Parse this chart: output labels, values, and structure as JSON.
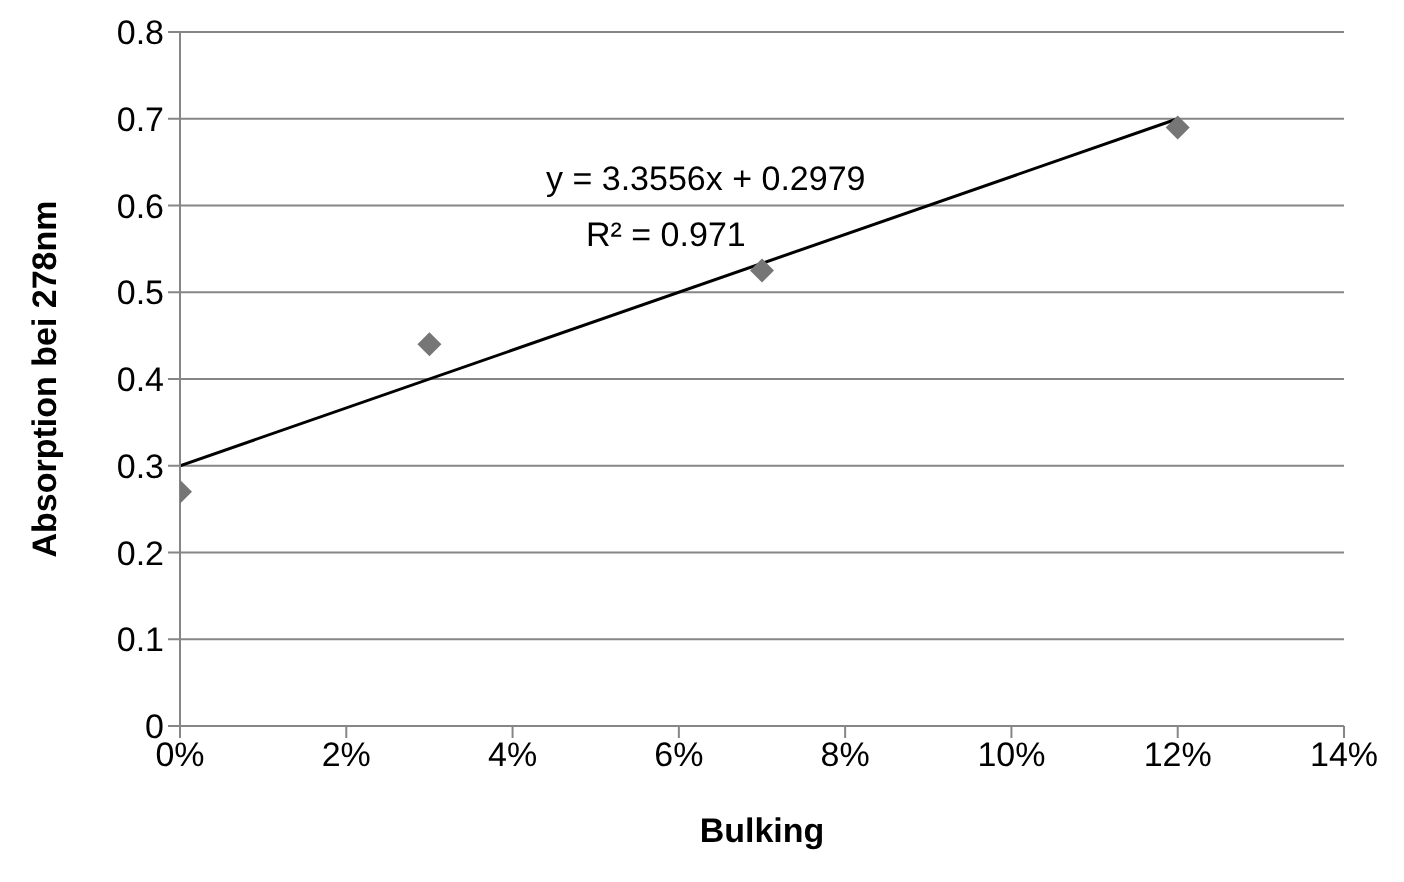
{
  "chart_data": {
    "type": "scatter",
    "xlabel": "Bulking",
    "ylabel": "Absorption bei 278nm",
    "xlim": [
      0,
      0.14
    ],
    "xticks": [
      {
        "value": 0,
        "label": "0%"
      },
      {
        "value": 0.02,
        "label": "2%"
      },
      {
        "value": 0.04,
        "label": "4%"
      },
      {
        "value": 0.06,
        "label": "6%"
      },
      {
        "value": 0.08,
        "label": "8%"
      },
      {
        "value": 0.1,
        "label": "10%"
      },
      {
        "value": 0.12,
        "label": "12%"
      },
      {
        "value": 0.14,
        "label": "14%"
      }
    ],
    "ylim": [
      0,
      0.8
    ],
    "yticks": [
      0,
      0.1,
      0.2,
      0.3,
      0.4,
      0.5,
      0.6,
      0.7,
      0.8
    ],
    "grid": "y",
    "legend": false,
    "series": [
      {
        "x": [
          0,
          0.03,
          0.07,
          0.12
        ],
        "values": [
          0.27,
          0.44,
          0.525,
          0.69
        ],
        "color": "#767676",
        "marker": "diamond"
      },
      {
        "type": "line",
        "x": [
          0,
          0.12
        ],
        "values": [
          0.3,
          0.7
        ],
        "color": "#000000",
        "marker": "none",
        "line_style": "solid"
      }
    ],
    "annotations": [
      "y = 3.3556x + 0.2979",
      "R² = 0.971"
    ]
  }
}
